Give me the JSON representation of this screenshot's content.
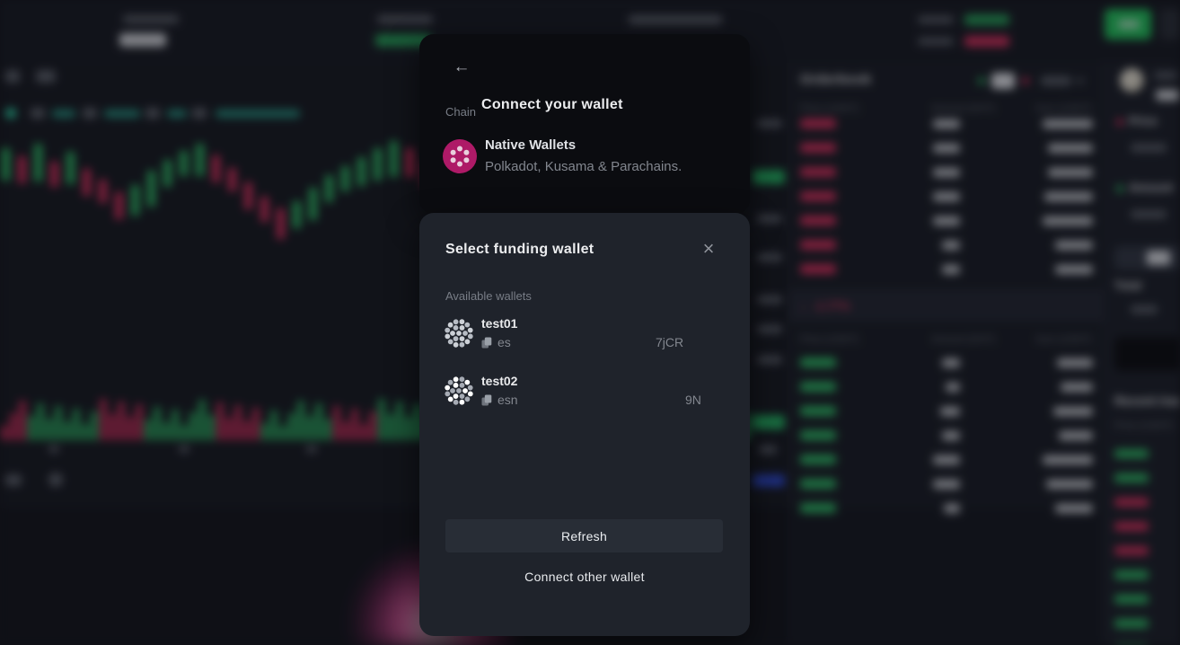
{
  "modal": {
    "connect": {
      "title": "Connect your wallet",
      "back_icon": "←",
      "chain_label": "Chain",
      "native_wallets": {
        "name": "Native Wallets",
        "description": "Polkadot, Kusama & Parachains."
      }
    },
    "funding": {
      "title": "Select funding wallet",
      "close_icon": "×",
      "available_label": "Available wallets",
      "wallets": [
        {
          "name": "test01",
          "address_start": "es",
          "address_end": "7jCR"
        },
        {
          "name": "test02",
          "address_start": "esn",
          "address_end": "9N"
        }
      ],
      "refresh_label": "Refresh",
      "connect_other_label": "Connect other wallet"
    }
  },
  "background": {
    "orderbook": {
      "title": "Orderbook",
      "columns": {
        "price": "Price (USDT)",
        "amount": "Amount (DOT)",
        "sum": "Sum (USDT)"
      },
      "spread_arrow": "↓",
      "spread_change": "-1.77%"
    },
    "trade_panel": {
      "price_label": "Price",
      "amount_label": "Amount",
      "total_label": "Total"
    },
    "recent_trades": {
      "title": "Recent trades",
      "price_column": "Price (USDT)"
    }
  },
  "colors": {
    "accent_green": "#23c55e",
    "bid_green": "#2fbd68",
    "ask_red": "#d8305f",
    "polkadot_pink": "#ae1a67",
    "badge_blue": "#2d48cb"
  }
}
